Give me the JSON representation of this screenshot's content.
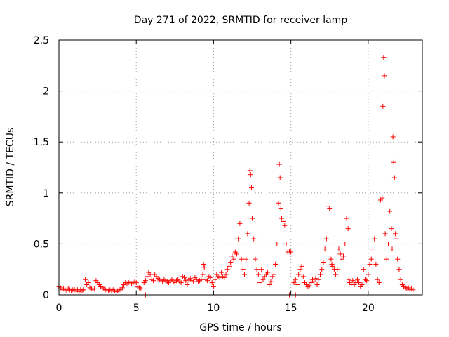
{
  "chart_data": {
    "type": "scatter",
    "title": "Day 271 of 2022, SRMTID for receiver lamp",
    "xlabel": "GPS time / hours",
    "ylabel": "SRMTID / TECUs",
    "xlim": [
      0,
      23.5
    ],
    "ylim": [
      0,
      2.5
    ],
    "x_ticks": [
      0,
      5,
      10,
      15,
      20
    ],
    "x_tick_labels": [
      "0",
      "5",
      "10",
      "15",
      "20"
    ],
    "y_ticks": [
      0,
      0.5,
      1,
      1.5,
      2,
      2.5
    ],
    "y_tick_labels": [
      "0",
      "0.5",
      "1",
      "1.5",
      "2",
      "2.5"
    ],
    "grid": true,
    "marker": "+",
    "marker_color": "#ff0000",
    "series": [
      {
        "name": "SRMTID",
        "x": [
          0.0,
          0.1,
          0.2,
          0.3,
          0.4,
          0.5,
          0.6,
          0.7,
          0.8,
          0.9,
          1.0,
          1.1,
          1.2,
          1.3,
          1.4,
          1.5,
          1.6,
          1.7,
          1.8,
          1.9,
          2.0,
          2.1,
          2.2,
          2.3,
          2.4,
          2.5,
          2.6,
          2.7,
          2.8,
          2.9,
          3.0,
          3.1,
          3.2,
          3.3,
          3.4,
          3.5,
          3.6,
          3.7,
          3.8,
          3.9,
          4.0,
          4.1,
          4.2,
          4.3,
          4.4,
          4.5,
          4.6,
          4.7,
          4.8,
          4.9,
          5.0,
          5.1,
          5.2,
          5.3,
          5.5,
          5.6,
          5.7,
          5.8,
          5.9,
          6.0,
          6.1,
          6.2,
          6.3,
          6.4,
          6.5,
          6.6,
          6.7,
          6.8,
          6.9,
          7.0,
          7.1,
          7.2,
          7.3,
          7.4,
          7.5,
          7.6,
          7.7,
          7.8,
          7.9,
          8.0,
          8.1,
          8.2,
          8.3,
          8.4,
          8.5,
          8.6,
          8.7,
          8.8,
          8.9,
          9.0,
          9.1,
          9.2,
          9.3,
          9.35,
          9.4,
          9.5,
          9.6,
          9.7,
          9.8,
          9.9,
          10.0,
          10.1,
          10.2,
          10.3,
          10.4,
          10.5,
          10.6,
          10.7,
          10.8,
          10.9,
          11.0,
          11.1,
          11.2,
          11.3,
          11.4,
          11.5,
          11.6,
          11.7,
          11.8,
          11.9,
          12.0,
          12.1,
          12.2,
          12.3,
          12.35,
          12.4,
          12.45,
          12.5,
          12.6,
          12.7,
          12.8,
          12.9,
          13.0,
          13.1,
          13.2,
          13.3,
          13.4,
          13.5,
          13.6,
          13.7,
          13.8,
          13.9,
          14.0,
          14.1,
          14.2,
          14.25,
          14.3,
          14.35,
          14.4,
          14.5,
          14.6,
          14.7,
          14.8,
          14.9,
          15.0,
          15.2,
          15.3,
          15.4,
          15.5,
          15.6,
          15.7,
          15.8,
          15.9,
          16.0,
          16.1,
          16.2,
          16.3,
          16.4,
          16.5,
          16.6,
          16.7,
          16.8,
          16.9,
          17.0,
          17.1,
          17.2,
          17.3,
          17.4,
          17.5,
          17.6,
          17.65,
          17.7,
          17.8,
          17.9,
          18.0,
          18.1,
          18.2,
          18.3,
          18.4,
          18.5,
          18.6,
          18.7,
          18.75,
          18.8,
          18.9,
          19.0,
          19.1,
          19.2,
          19.3,
          19.4,
          19.5,
          19.6,
          19.7,
          19.8,
          19.9,
          20.0,
          20.1,
          20.2,
          20.3,
          20.4,
          20.5,
          20.6,
          20.7,
          20.8,
          20.9,
          20.95,
          21.0,
          21.05,
          21.1,
          21.2,
          21.3,
          21.4,
          21.5,
          21.55,
          21.6,
          21.65,
          21.7,
          21.75,
          21.8,
          21.9,
          22.0,
          22.1,
          22.2,
          22.3,
          22.4,
          22.5,
          22.6,
          22.7,
          22.8,
          22.9,
          5.6,
          14.9,
          15.3
        ],
        "y": [
          0.08,
          0.07,
          0.05,
          0.06,
          0.05,
          0.04,
          0.06,
          0.05,
          0.04,
          0.05,
          0.05,
          0.04,
          0.05,
          0.03,
          0.05,
          0.04,
          0.05,
          0.15,
          0.1,
          0.12,
          0.07,
          0.06,
          0.05,
          0.06,
          0.14,
          0.12,
          0.1,
          0.08,
          0.07,
          0.06,
          0.05,
          0.05,
          0.04,
          0.05,
          0.04,
          0.05,
          0.04,
          0.03,
          0.04,
          0.05,
          0.05,
          0.07,
          0.1,
          0.12,
          0.11,
          0.12,
          0.13,
          0.11,
          0.12,
          0.13,
          0.12,
          0.08,
          0.07,
          0.06,
          0.12,
          0.14,
          0.18,
          0.22,
          0.2,
          0.15,
          0.14,
          0.2,
          0.18,
          0.16,
          0.15,
          0.14,
          0.13,
          0.15,
          0.14,
          0.13,
          0.12,
          0.14,
          0.15,
          0.13,
          0.12,
          0.14,
          0.15,
          0.13,
          0.12,
          0.18,
          0.17,
          0.14,
          0.1,
          0.15,
          0.16,
          0.14,
          0.13,
          0.17,
          0.15,
          0.13,
          0.14,
          0.15,
          0.2,
          0.3,
          0.27,
          0.15,
          0.14,
          0.18,
          0.17,
          0.12,
          0.08,
          0.15,
          0.2,
          0.18,
          0.17,
          0.22,
          0.18,
          0.17,
          0.2,
          0.25,
          0.28,
          0.32,
          0.38,
          0.35,
          0.42,
          0.4,
          0.55,
          0.7,
          0.35,
          0.25,
          0.2,
          0.35,
          0.6,
          0.9,
          1.22,
          1.18,
          1.05,
          0.75,
          0.55,
          0.35,
          0.25,
          0.2,
          0.12,
          0.25,
          0.15,
          0.18,
          0.2,
          0.22,
          0.1,
          0.13,
          0.18,
          0.2,
          0.3,
          0.5,
          0.9,
          1.28,
          1.15,
          0.85,
          0.75,
          0.72,
          0.68,
          0.5,
          0.42,
          0.43,
          0.42,
          0.12,
          0.15,
          0.1,
          0.2,
          0.25,
          0.28,
          0.18,
          0.12,
          0.1,
          0.08,
          0.09,
          0.12,
          0.15,
          0.13,
          0.16,
          0.1,
          0.15,
          0.2,
          0.25,
          0.32,
          0.45,
          0.55,
          0.87,
          0.85,
          0.35,
          0.3,
          0.28,
          0.25,
          0.2,
          0.25,
          0.45,
          0.4,
          0.35,
          0.38,
          0.5,
          0.75,
          0.65,
          0.15,
          0.12,
          0.1,
          0.14,
          0.1,
          0.12,
          0.15,
          0.12,
          0.08,
          0.1,
          0.25,
          0.15,
          0.14,
          0.2,
          0.3,
          0.35,
          0.45,
          0.55,
          0.3,
          0.15,
          0.12,
          0.93,
          0.95,
          1.85,
          2.33,
          2.15,
          0.6,
          0.35,
          0.5,
          0.82,
          0.65,
          0.45,
          1.55,
          1.3,
          1.15,
          0.6,
          0.55,
          0.35,
          0.25,
          0.15,
          0.1,
          0.08,
          0.07,
          0.06,
          0.07,
          0.05,
          0.06,
          0.05,
          0.0,
          0.0,
          0.0
        ]
      }
    ]
  }
}
